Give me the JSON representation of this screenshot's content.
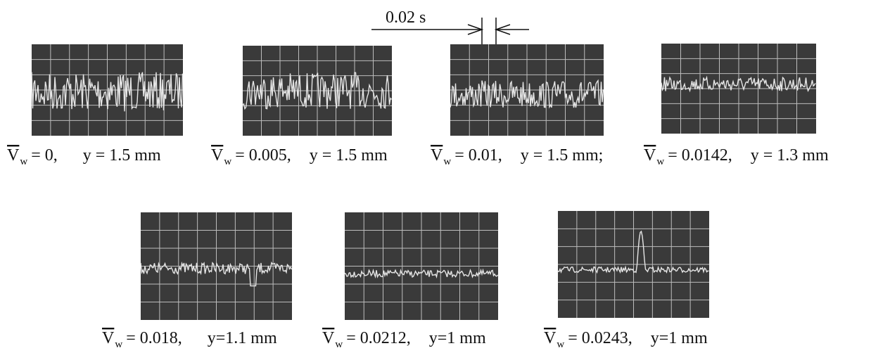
{
  "scale_label": "0.02 s",
  "panels": [
    {
      "symbol": "V",
      "subscript": "w",
      "value": "= 0,",
      "depth": "y = 1.5 mm"
    },
    {
      "symbol": "V",
      "subscript": "w",
      "value": "= 0.005,",
      "depth": "y = 1.5 mm"
    },
    {
      "symbol": "V",
      "subscript": "w",
      "value": "= 0.01,",
      "depth": "y = 1.5 mm;"
    },
    {
      "symbol": "V",
      "subscript": "w",
      "value": "= 0.0142,",
      "depth": "y = 1.3 mm"
    },
    {
      "symbol": "V",
      "subscript": "w",
      "value": "= 0.018,",
      "depth": "y=1.1 mm"
    },
    {
      "symbol": "V",
      "subscript": "w",
      "value": "= 0.0212,",
      "depth": "y=1 mm"
    },
    {
      "symbol": "V",
      "subscript": "w",
      "value": "= 0.0243,",
      "depth": "y=1 mm"
    }
  ]
}
